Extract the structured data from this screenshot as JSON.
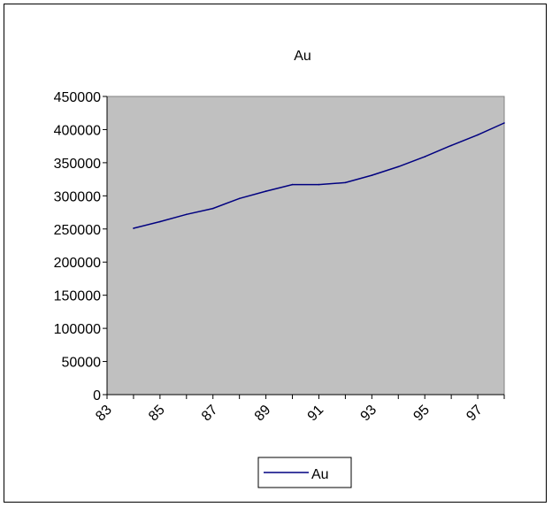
{
  "chart_data": {
    "type": "line",
    "title": "Au",
    "xlabel": "",
    "ylabel": "",
    "x": [
      84,
      85,
      86,
      87,
      88,
      89,
      90,
      91,
      92,
      93,
      94,
      95,
      96,
      97,
      98
    ],
    "x_tick_labels": [
      "83",
      "85",
      "87",
      "89",
      "91",
      "93",
      "95",
      "97"
    ],
    "x_tick_values": [
      83,
      85,
      87,
      89,
      91,
      93,
      95,
      97
    ],
    "xlim": [
      83,
      98
    ],
    "series": [
      {
        "name": "Au",
        "color": "#000080",
        "values": [
          251000,
          261000,
          272000,
          281000,
          296000,
          307000,
          317000,
          317000,
          320000,
          331000,
          344000,
          359000,
          376000,
          392000,
          410000
        ]
      }
    ],
    "ylim": [
      0,
      450000
    ],
    "y_ticks": [
      0,
      50000,
      100000,
      150000,
      200000,
      250000,
      300000,
      350000,
      400000,
      450000
    ],
    "y_tick_labels": [
      "0",
      "50000",
      "100000",
      "150000",
      "200000",
      "250000",
      "300000",
      "350000",
      "400000",
      "450000"
    ],
    "plot_background": "#c0c0c0",
    "grid": false,
    "legend": {
      "position": "bottom-center",
      "entries": [
        "Au"
      ]
    }
  }
}
